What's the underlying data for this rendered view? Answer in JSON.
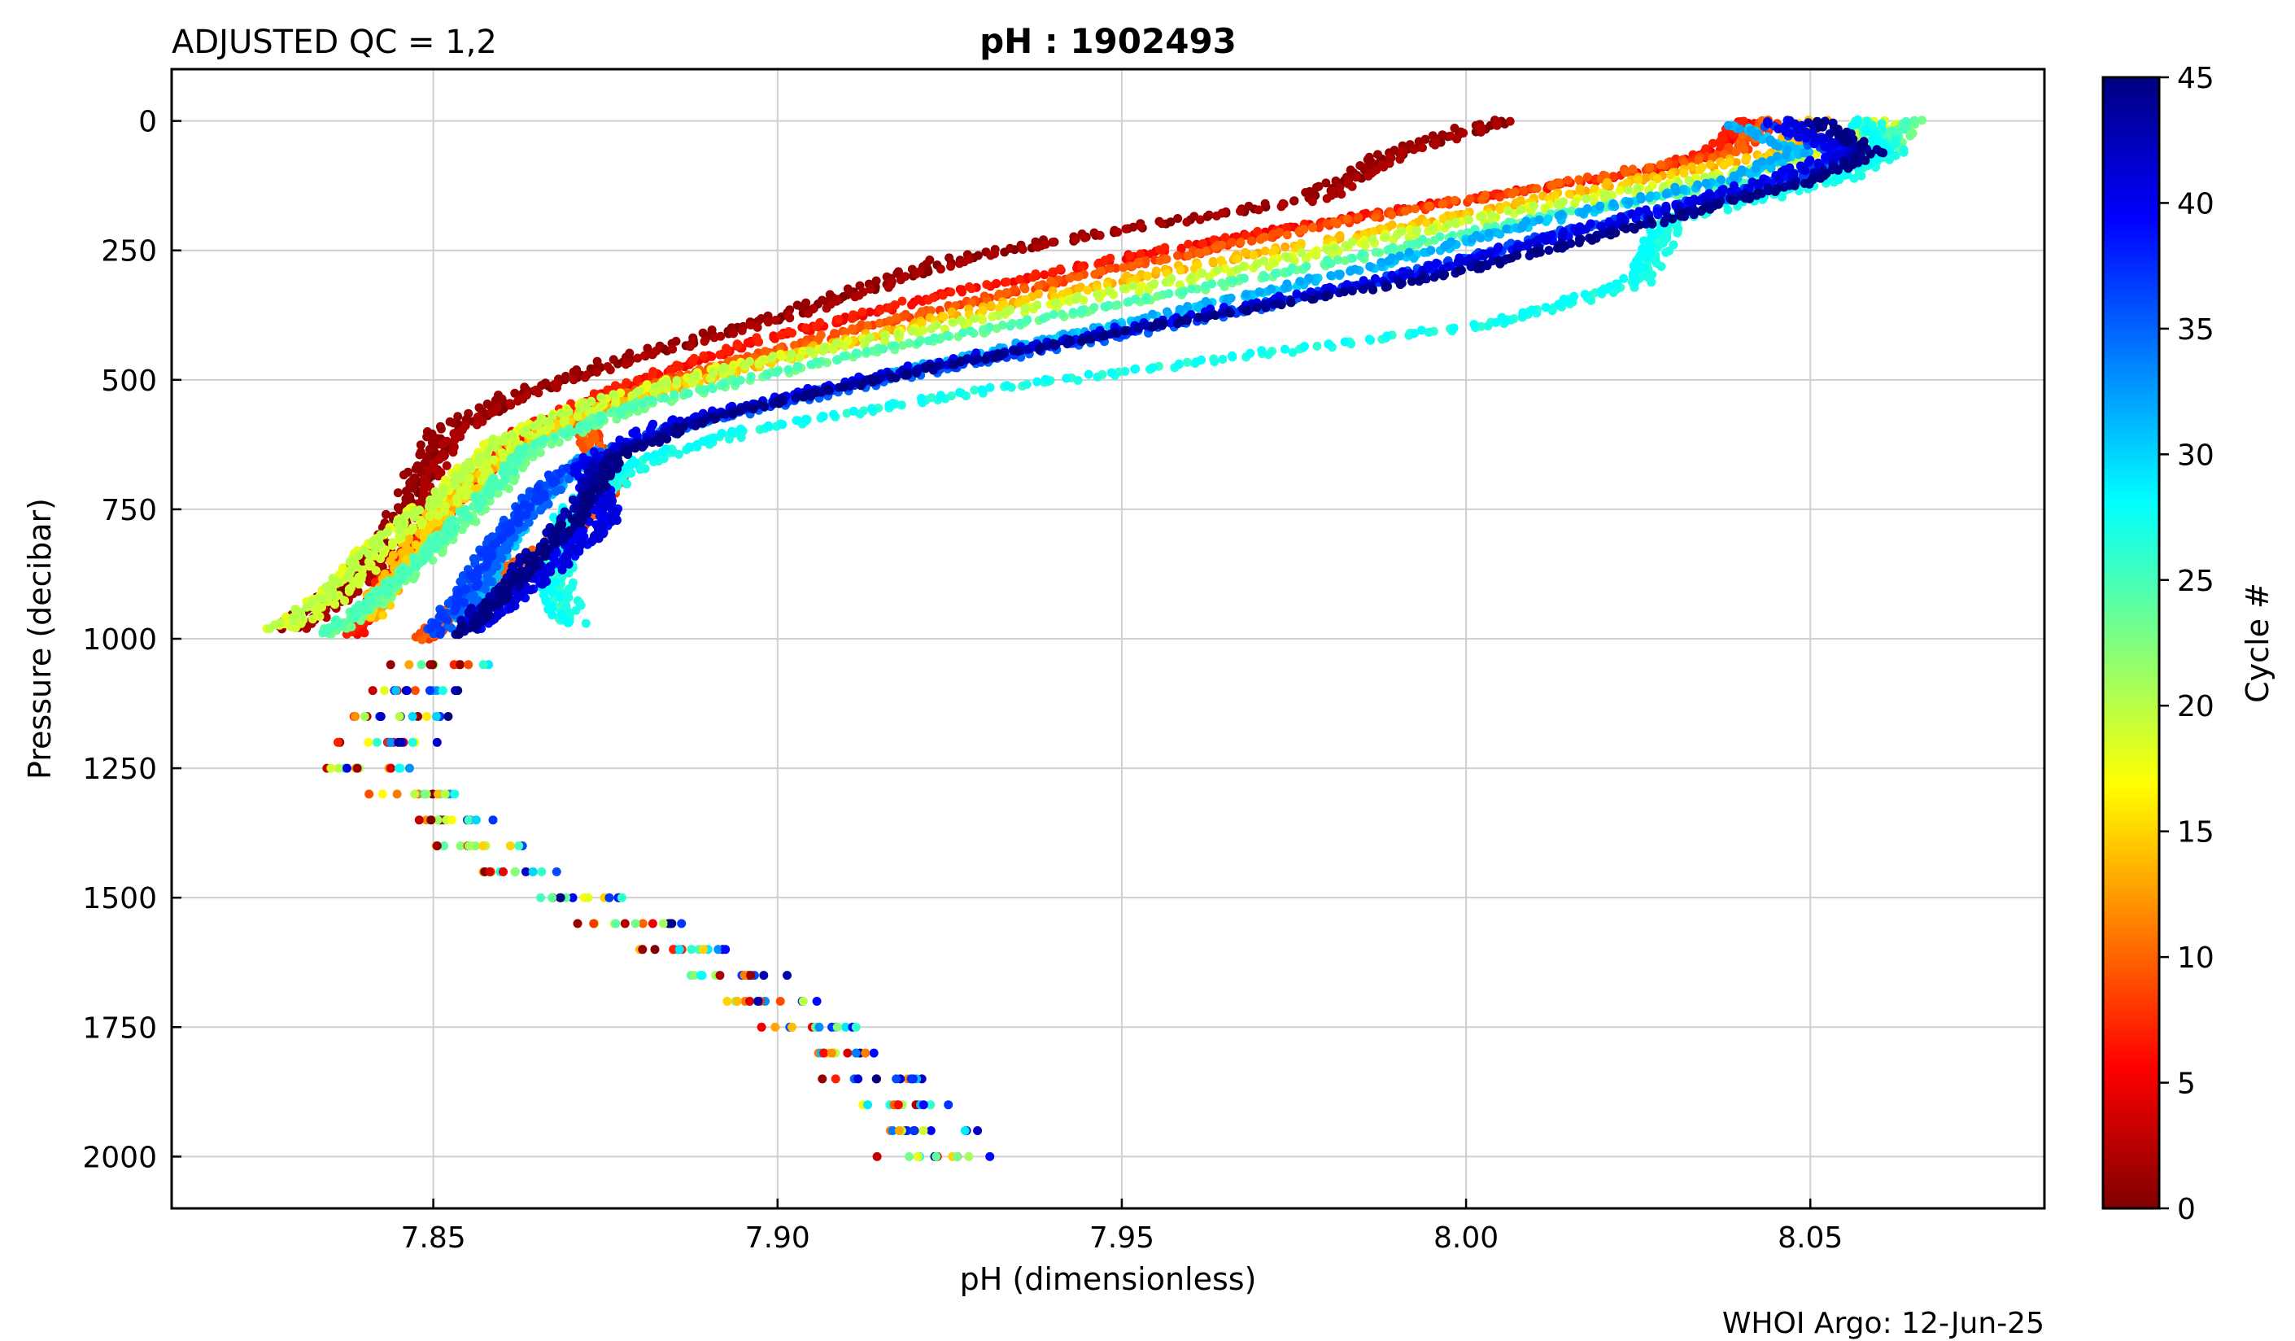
{
  "chart_data": {
    "type": "scatter",
    "title_left": "ADJUSTED QC = 1,2",
    "title_center": "pH : 1902493",
    "xlabel": "pH  (dimensionless)",
    "ylabel": "Pressure  (decibar)",
    "footer": "WHOI Argo: 12-Jun-25",
    "xlim": [
      7.812,
      8.084
    ],
    "ylim": [
      2100,
      -100
    ],
    "y_inverted": true,
    "grid": true,
    "x_ticks": [
      7.85,
      7.9,
      7.95,
      8.0,
      8.05
    ],
    "x_tick_labels": [
      "7.85",
      "7.90",
      "7.95",
      "8.00",
      "8.05"
    ],
    "y_ticks": [
      0,
      250,
      500,
      750,
      1000,
      1250,
      1500,
      1750,
      2000
    ],
    "y_tick_labels": [
      "0",
      "250",
      "500",
      "750",
      "1000",
      "1250",
      "1500",
      "1750",
      "2000"
    ],
    "colorbar": {
      "label": "Cycle #",
      "colormap": "jet",
      "range": [
        0,
        45
      ],
      "ticks": [
        0,
        5,
        10,
        15,
        20,
        25,
        30,
        35,
        40,
        45
      ],
      "tick_labels": [
        "0",
        "5",
        "10",
        "15",
        "20",
        "25",
        "30",
        "35",
        "40",
        "45"
      ]
    },
    "color_variable": "cycle",
    "profiles_upper": [
      {
        "cycle": 1,
        "points": [
          [
            8.005,
            0
          ],
          [
            7.99,
            60
          ],
          [
            7.978,
            150
          ],
          [
            7.95,
            210
          ],
          [
            7.925,
            270
          ],
          [
            7.9,
            380
          ],
          [
            7.878,
            460
          ],
          [
            7.862,
            530
          ],
          [
            7.852,
            600
          ],
          [
            7.848,
            700
          ],
          [
            7.845,
            800
          ],
          [
            7.838,
            900
          ],
          [
            7.83,
            980
          ]
        ]
      },
      {
        "cycle": 6,
        "points": [
          [
            8.04,
            0
          ],
          [
            8.035,
            60
          ],
          [
            8.025,
            100
          ],
          [
            7.99,
            170
          ],
          [
            7.955,
            250
          ],
          [
            7.925,
            330
          ],
          [
            7.895,
            430
          ],
          [
            7.875,
            520
          ],
          [
            7.862,
            600
          ],
          [
            7.855,
            700
          ],
          [
            7.848,
            800
          ],
          [
            7.842,
            900
          ],
          [
            7.838,
            990
          ]
        ]
      },
      {
        "cycle": 9,
        "points": [
          [
            8.045,
            0
          ],
          [
            8.04,
            60
          ],
          [
            8.02,
            110
          ],
          [
            7.985,
            190
          ],
          [
            7.945,
            300
          ],
          [
            7.91,
            410
          ],
          [
            7.885,
            500
          ],
          [
            7.872,
            570
          ],
          [
            7.878,
            700
          ],
          [
            7.87,
            800
          ],
          [
            7.858,
            900
          ],
          [
            7.85,
            1000
          ]
        ]
      },
      {
        "cycle": 14,
        "points": [
          [
            8.05,
            0
          ],
          [
            8.045,
            60
          ],
          [
            8.03,
            100
          ],
          [
            7.995,
            190
          ],
          [
            7.96,
            280
          ],
          [
            7.93,
            360
          ],
          [
            7.905,
            440
          ],
          [
            7.885,
            510
          ],
          [
            7.868,
            580
          ],
          [
            7.858,
            660
          ],
          [
            7.85,
            760
          ],
          [
            7.845,
            860
          ],
          [
            7.84,
            960
          ]
        ]
      },
      {
        "cycle": 19,
        "points": [
          [
            8.06,
            0
          ],
          [
            8.055,
            60
          ],
          [
            8.035,
            110
          ],
          [
            8.005,
            180
          ],
          [
            7.965,
            290
          ],
          [
            7.93,
            380
          ],
          [
            7.895,
            470
          ],
          [
            7.872,
            550
          ],
          [
            7.86,
            620
          ],
          [
            7.852,
            720
          ],
          [
            7.842,
            820
          ],
          [
            7.835,
            920
          ],
          [
            7.828,
            980
          ]
        ]
      },
      {
        "cycle": 24,
        "points": [
          [
            8.065,
            0
          ],
          [
            8.06,
            70
          ],
          [
            8.045,
            110
          ],
          [
            8.01,
            190
          ],
          [
            7.975,
            290
          ],
          [
            7.94,
            380
          ],
          [
            7.905,
            470
          ],
          [
            7.88,
            550
          ],
          [
            7.865,
            630
          ],
          [
            7.858,
            730
          ],
          [
            7.85,
            830
          ],
          [
            7.842,
            930
          ],
          [
            7.835,
            990
          ]
        ]
      },
      {
        "cycle": 27,
        "points": [
          [
            8.058,
            0
          ],
          [
            8.062,
            60
          ],
          [
            8.055,
            110
          ],
          [
            8.03,
            190
          ],
          [
            8.025,
            310
          ],
          [
            8.005,
            390
          ],
          [
            7.97,
            450
          ],
          [
            7.93,
            520
          ],
          [
            7.895,
            600
          ],
          [
            7.88,
            660
          ],
          [
            7.87,
            760
          ],
          [
            7.868,
            880
          ],
          [
            7.87,
            970
          ]
        ]
      },
      {
        "cycle": 31,
        "points": [
          [
            8.04,
            10
          ],
          [
            8.05,
            60
          ],
          [
            8.04,
            110
          ],
          [
            8.01,
            200
          ],
          [
            7.985,
            290
          ],
          [
            7.955,
            380
          ],
          [
            7.92,
            480
          ],
          [
            7.895,
            560
          ],
          [
            7.875,
            640
          ],
          [
            7.865,
            740
          ],
          [
            7.86,
            860
          ],
          [
            7.855,
            960
          ]
        ]
      },
      {
        "cycle": 36,
        "points": [
          [
            8.045,
            10
          ],
          [
            8.055,
            70
          ],
          [
            8.045,
            120
          ],
          [
            8.015,
            210
          ],
          [
            7.99,
            300
          ],
          [
            7.955,
            400
          ],
          [
            7.915,
            500
          ],
          [
            7.885,
            590
          ],
          [
            7.868,
            680
          ],
          [
            7.86,
            790
          ],
          [
            7.855,
            900
          ],
          [
            7.85,
            990
          ]
        ]
      },
      {
        "cycle": 40,
        "points": [
          [
            8.045,
            0
          ],
          [
            8.055,
            60
          ],
          [
            8.045,
            110
          ],
          [
            8.02,
            200
          ],
          [
            7.99,
            300
          ],
          [
            7.955,
            390
          ],
          [
            7.915,
            490
          ],
          [
            7.885,
            580
          ],
          [
            7.872,
            660
          ],
          [
            7.875,
            770
          ],
          [
            7.865,
            880
          ],
          [
            7.855,
            980
          ]
        ]
      },
      {
        "cycle": 44,
        "points": [
          [
            8.05,
            0
          ],
          [
            8.058,
            60
          ],
          [
            8.05,
            110
          ],
          [
            8.025,
            200
          ],
          [
            7.995,
            300
          ],
          [
            7.96,
            380
          ],
          [
            7.92,
            480
          ],
          [
            7.89,
            570
          ],
          [
            7.875,
            650
          ],
          [
            7.87,
            760
          ],
          [
            7.862,
            870
          ],
          [
            7.853,
            990
          ]
        ]
      }
    ],
    "deep_profile": [
      [
        1050,
        7.843
      ],
      [
        1100,
        7.838
      ],
      [
        1150,
        7.836
      ],
      [
        1200,
        7.834
      ],
      [
        1250,
        7.832
      ],
      [
        1300,
        7.838
      ],
      [
        1350,
        7.842
      ],
      [
        1400,
        7.848
      ],
      [
        1450,
        7.855
      ],
      [
        1500,
        7.862
      ],
      [
        1550,
        7.87
      ],
      [
        1600,
        7.877
      ],
      [
        1650,
        7.884
      ],
      [
        1700,
        7.89
      ],
      [
        1750,
        7.896
      ],
      [
        1800,
        7.902
      ],
      [
        1850,
        7.906
      ],
      [
        1900,
        7.909
      ],
      [
        1950,
        7.912
      ],
      [
        2000,
        7.914
      ]
    ]
  }
}
